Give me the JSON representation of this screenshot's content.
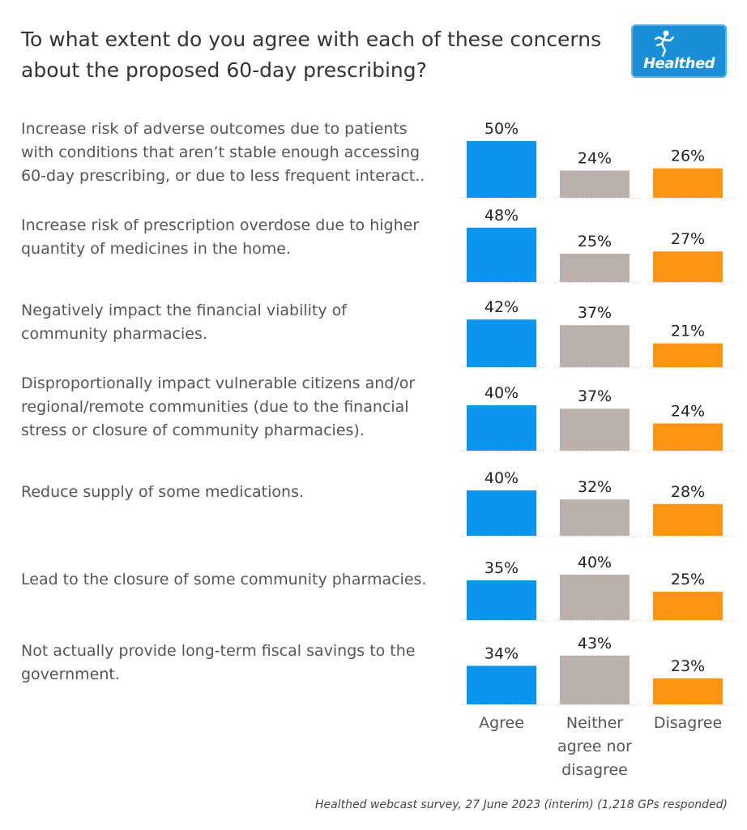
{
  "title": "To what extent do you agree with each of these concerns about the proposed 60-day prescribing?",
  "logo": {
    "text": "Healthed",
    "icon": "running-figure-icon"
  },
  "source": "Healthed webcast survey, 27 June 2023 (interim) (1,218 GPs responded)",
  "colors": {
    "agree": "#0a96ee",
    "neither": "#bab0ac",
    "disagree": "#fe9611",
    "logo_bg": "#1a8fd8"
  },
  "chart_data": {
    "type": "bar",
    "title": "To what extent do you agree with each of these concerns about the proposed 60-day prescribing?",
    "categories": [
      "Increase risk of adverse outcomes due to patients\nwith conditions that aren’t stable enough accessing\n60-day prescribing, or due to less frequent interact..",
      "Increase risk of prescription overdose due to higher\nquantity of medicines in the home.",
      "Negatively impact the financial viability of\ncommunity pharmacies.",
      "Disproportionally impact vulnerable citizens and/or\nregional/remote communities (due to the financial\nstress or closure of community pharmacies).",
      "Reduce supply of some medications.",
      "Lead to the closure of some community pharmacies.",
      "Not actually provide long-term fiscal savings to the\ngovernment."
    ],
    "columns": [
      "Agree",
      "Neither\nagree nor\ndisagree",
      "Disagree"
    ],
    "series": [
      {
        "name": "Agree",
        "values": [
          50,
          48,
          42,
          40,
          40,
          35,
          34
        ]
      },
      {
        "name": "Neither agree nor disagree",
        "values": [
          24,
          25,
          37,
          37,
          32,
          40,
          43
        ]
      },
      {
        "name": "Disagree",
        "values": [
          26,
          27,
          21,
          24,
          28,
          25,
          23
        ]
      }
    ],
    "value_suffix": "%",
    "ylim": [
      0,
      50
    ],
    "grid": false,
    "legend": "none"
  }
}
